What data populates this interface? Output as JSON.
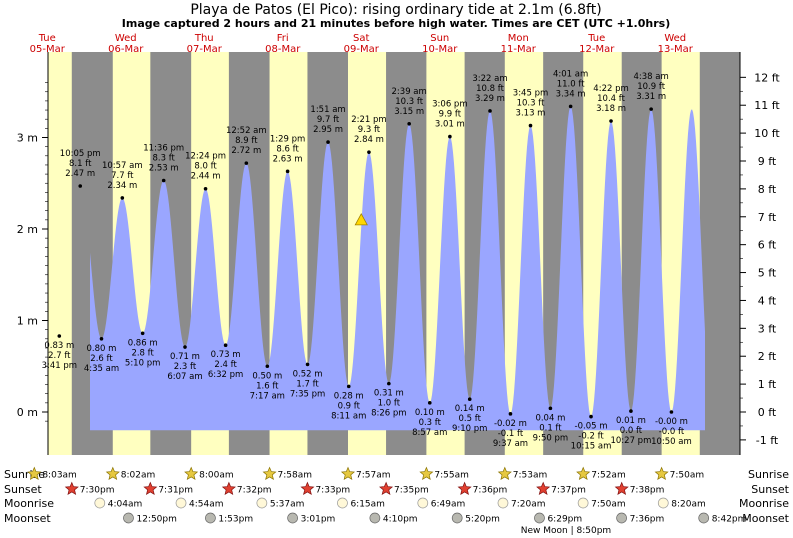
{
  "title": "Playa de Patos (El Pico): rising  ordinary tide at 2.1m (6.8ft)",
  "subtitle": "Image captured 2 hours and 21 minutes before high water. Times are CET (UTC +1.0hrs)",
  "colors": {
    "night": "#8c8c8c",
    "day": "#ffffc0",
    "water": "#9aa6ff",
    "daylabel": "#cc0000",
    "marker": "#ffd700"
  },
  "days": [
    {
      "dow": "Tue",
      "date": "05-Mar"
    },
    {
      "dow": "Wed",
      "date": "06-Mar"
    },
    {
      "dow": "Thu",
      "date": "07-Mar"
    },
    {
      "dow": "Fri",
      "date": "08-Mar"
    },
    {
      "dow": "Sat",
      "date": "09-Mar"
    },
    {
      "dow": "Sun",
      "date": "10-Mar"
    },
    {
      "dow": "Mon",
      "date": "11-Mar"
    },
    {
      "dow": "Tue",
      "date": "12-Mar"
    },
    {
      "dow": "Wed",
      "date": "13-Mar"
    }
  ],
  "left_axis_labels": [
    "3 m",
    "2 m",
    "1 m",
    "0 m"
  ],
  "right_axis_labels": [
    "12 ft",
    "11 ft",
    "10 ft",
    "9 ft",
    "8 ft",
    "7 ft",
    "6 ft",
    "5 ft",
    "4 ft",
    "3 ft",
    "2 ft",
    "1 ft",
    "0 ft",
    "-1 ft"
  ],
  "row_labels": {
    "sunrise": "Sunrise",
    "sunset": "Sunset",
    "moonrise": "Moonrise",
    "moonset": "Moonset"
  },
  "sunrise": [
    "8:03am",
    "8:02am",
    "8:00am",
    "7:58am",
    "7:57am",
    "7:55am",
    "7:53am",
    "7:52am",
    "7:50am"
  ],
  "sunset": [
    "7:30pm",
    "7:31pm",
    "7:32pm",
    "7:33pm",
    "7:35pm",
    "7:36pm",
    "7:37pm",
    "7:38pm"
  ],
  "moonrise": [
    "4:04am",
    "4:54am",
    "5:37am",
    "6:15am",
    "6:49am",
    "7:20am",
    "7:50am",
    "8:20am"
  ],
  "moonset": [
    "12:50pm",
    "1:53pm",
    "3:01pm",
    "4:10pm",
    "5:20pm",
    "6:29pm",
    "7:36pm",
    "8:42pm"
  ],
  "new_moon": "New Moon | 8:50pm",
  "chart_data": {
    "type": "area",
    "y_unit": "m",
    "ylim": [
      -0.2,
      3.7
    ],
    "x_range_days": [
      "05-Mar",
      "13-Mar"
    ],
    "extremes": [
      {
        "day": 0,
        "time": "3:41 pm",
        "m": 0.83,
        "ft": "2.7 ft",
        "label": "0.83 m"
      },
      {
        "day": 0,
        "time": "10:05 pm",
        "m": 2.47,
        "ft": "8.1 ft",
        "label": "2.47 m"
      },
      {
        "day": 1,
        "time": "4:35 am",
        "m": 0.8,
        "ft": "2.6 ft",
        "label": "0.80 m"
      },
      {
        "day": 1,
        "time": "10:57 am",
        "m": 2.34,
        "ft": "7.7 ft",
        "label": "2.34 m"
      },
      {
        "day": 1,
        "time": "5:10 pm",
        "m": 0.86,
        "ft": "2.8 ft",
        "label": "0.86 m"
      },
      {
        "day": 1,
        "time": "11:36 pm",
        "m": 2.53,
        "ft": "8.3 ft",
        "label": "2.53 m"
      },
      {
        "day": 2,
        "time": "6:07 am",
        "m": 0.71,
        "ft": "2.3 ft",
        "label": "0.71 m"
      },
      {
        "day": 2,
        "time": "12:24 pm",
        "m": 2.44,
        "ft": "8.0 ft",
        "label": "2.44 m"
      },
      {
        "day": 2,
        "time": "6:32 pm",
        "m": 0.73,
        "ft": "2.4 ft",
        "label": "0.73 m"
      },
      {
        "day": 3,
        "time": "12:52 am",
        "m": 2.72,
        "ft": "8.9 ft",
        "label": "2.72 m"
      },
      {
        "day": 3,
        "time": "7:17 am",
        "m": 0.5,
        "ft": "1.6 ft",
        "label": "0.50 m"
      },
      {
        "day": 3,
        "time": "1:29 pm",
        "m": 2.63,
        "ft": "8.6 ft",
        "label": "2.63 m"
      },
      {
        "day": 3,
        "time": "7:35 pm",
        "m": 0.52,
        "ft": "1.7 ft",
        "label": "0.52 m"
      },
      {
        "day": 4,
        "time": "1:51 am",
        "m": 2.95,
        "ft": "9.7 ft",
        "label": "2.95 m"
      },
      {
        "day": 4,
        "time": "8:11 am",
        "m": 0.28,
        "ft": "0.9 ft",
        "label": "0.28 m"
      },
      {
        "day": 4,
        "time": "2:21 pm",
        "m": 2.84,
        "ft": "9.3 ft",
        "label": "2.84 m"
      },
      {
        "day": 4,
        "time": "8:26 pm",
        "m": 0.31,
        "ft": "1.0 ft",
        "label": "0.31 m"
      },
      {
        "day": 5,
        "time": "2:39 am",
        "m": 3.15,
        "ft": "10.3 ft",
        "label": "3.15 m"
      },
      {
        "day": 5,
        "time": "8:57 am",
        "m": 0.1,
        "ft": "0.3 ft",
        "label": "0.10 m"
      },
      {
        "day": 5,
        "time": "3:06 pm",
        "m": 3.01,
        "ft": "9.9 ft",
        "label": "3.01 m"
      },
      {
        "day": 5,
        "time": "9:10 pm",
        "m": 0.14,
        "ft": "0.5 ft",
        "label": "0.14 m"
      },
      {
        "day": 6,
        "time": "3:22 am",
        "m": 3.29,
        "ft": "10.8 ft",
        "label": "3.29 m"
      },
      {
        "day": 6,
        "time": "9:37 am",
        "m": -0.02,
        "ft": "-0.1 ft",
        "label": "-0.02 m"
      },
      {
        "day": 6,
        "time": "3:45 pm",
        "m": 3.13,
        "ft": "10.3 ft",
        "label": "3.13 m"
      },
      {
        "day": 6,
        "time": "9:50 pm",
        "m": 0.04,
        "ft": "0.1 ft",
        "label": "0.04 m"
      },
      {
        "day": 7,
        "time": "4:01 am",
        "m": 3.34,
        "ft": "11.0 ft",
        "label": "3.34 m"
      },
      {
        "day": 7,
        "time": "10:15 am",
        "m": -0.05,
        "ft": "-0.2 ft",
        "label": "-0.05 m"
      },
      {
        "day": 7,
        "time": "4:22 pm",
        "m": 3.18,
        "ft": "10.4 ft",
        "label": "3.18 m"
      },
      {
        "day": 7,
        "time": "10:27 pm",
        "m": 0.01,
        "ft": "0.0 ft",
        "label": "0.01 m"
      },
      {
        "day": 8,
        "time": "4:38 am",
        "m": 3.31,
        "ft": "10.9 ft",
        "label": "3.31 m"
      },
      {
        "day": 8,
        "time": "10:50 am",
        "m": -0.0,
        "ft": "-0.0 ft",
        "label": "-0.00 m"
      }
    ],
    "current": {
      "day": 4,
      "time": "12:00 pm",
      "m": 2.1,
      "label": "rising ordinary tide at 2.1m (6.8ft)"
    }
  }
}
